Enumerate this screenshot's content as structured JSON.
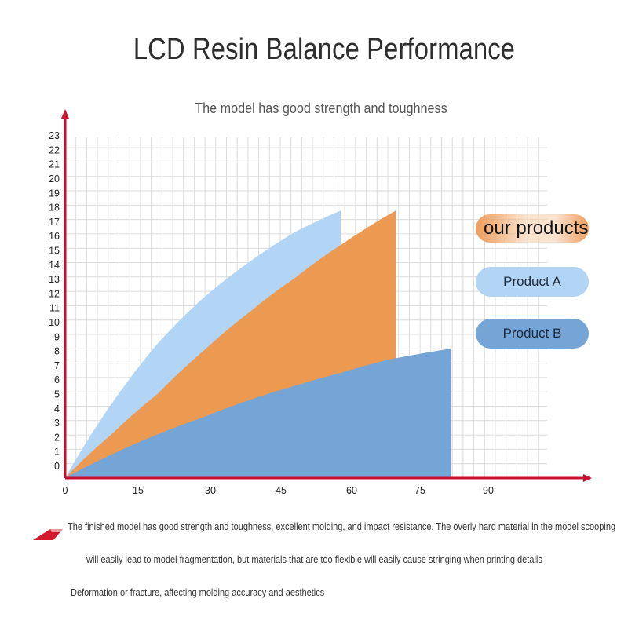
{
  "title": "LCD Resin Balance Performance",
  "subtitle": "The model has good strength and toughness",
  "legend": {
    "ours": "our products",
    "product_a": "Product A",
    "product_b": "Product B"
  },
  "notes": [
    "The finished model has good strength and toughness, excellent molding, and impact resistance. The overly hard material in the model scooping",
    "will easily lead to model fragmentation, but materials that are too flexible will easily cause stringing when printing details",
    "Deformation or fracture, affecting molding accuracy and aesthetics"
  ],
  "colors": {
    "axis": "#c8102e",
    "grid": "#dcdcdc",
    "ours": "#ec9a52",
    "product_a": "#b2d4f5",
    "product_b": "#75a5d6"
  },
  "chart_data": {
    "type": "area",
    "xticks": [
      0,
      15,
      30,
      45,
      60,
      75,
      90
    ],
    "yticks": [
      0,
      1,
      2,
      3,
      4,
      5,
      6,
      7,
      8,
      9,
      10,
      11,
      12,
      13,
      14,
      15,
      16,
      17,
      18,
      19,
      20,
      21,
      22,
      23
    ],
    "xlim": [
      0,
      105
    ],
    "ylim": [
      -0.8,
      23
    ],
    "grid": true,
    "legend_position": "right",
    "series": [
      {
        "name": "Product A",
        "key": "product_a",
        "x": [
          0,
          10,
          20,
          30,
          40,
          50,
          60
        ],
        "y": [
          -0.8,
          4.3,
          8.5,
          11.7,
          14.2,
          16.3,
          17.8
        ]
      },
      {
        "name": "our products",
        "key": "ours",
        "x": [
          0,
          10,
          20,
          30,
          40,
          50,
          60,
          72
        ],
        "y": [
          -0.8,
          2.2,
          5.0,
          8.0,
          10.7,
          13.1,
          15.4,
          17.8
        ]
      },
      {
        "name": "Product B",
        "key": "product_b",
        "x": [
          0,
          10,
          20,
          30,
          40,
          50,
          60,
          70,
          84
        ],
        "y": [
          -0.8,
          0.8,
          2.2,
          3.4,
          4.6,
          5.6,
          6.5,
          7.4,
          8.2
        ]
      }
    ]
  }
}
